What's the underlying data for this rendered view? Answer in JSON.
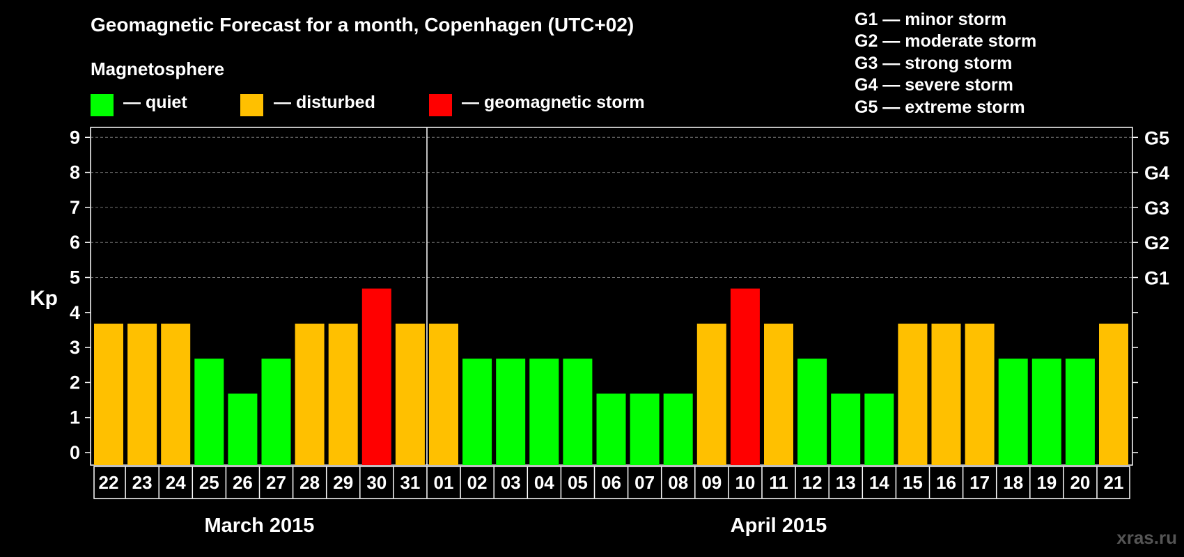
{
  "title": "Geomagnetic Forecast for a month, Copenhagen (UTC+02)",
  "subtitle": "Magnetosphere",
  "legend": [
    {
      "label": "— quiet",
      "color": "#00ff00"
    },
    {
      "label": "— disturbed",
      "color": "#ffc000"
    },
    {
      "label": "— geomagnetic storm",
      "color": "#ff0000"
    }
  ],
  "g_levels": [
    "G1 — minor storm",
    "G2 — moderate storm",
    "G3 — strong storm",
    "G4 — severe storm",
    "G5 — extreme storm"
  ],
  "watermark": "xras.ru",
  "colors": {
    "quiet": "#00ff00",
    "disturbed": "#ffc000",
    "storm": "#ff0000",
    "grid": "#777777"
  },
  "chart_data": {
    "type": "bar",
    "title": "Geomagnetic Forecast for a month, Copenhagen (UTC+02)",
    "ylabel": "Kp",
    "ylim": [
      0,
      9
    ],
    "yticks": [
      "0",
      "1",
      "2",
      "3",
      "4",
      "5",
      "6",
      "7",
      "8",
      "9"
    ],
    "right_axis_labels": [
      {
        "kp": 5,
        "label": "G1"
      },
      {
        "kp": 6,
        "label": "G2"
      },
      {
        "kp": 7,
        "label": "G3"
      },
      {
        "kp": 8,
        "label": "G4"
      },
      {
        "kp": 9,
        "label": "G5"
      }
    ],
    "categories": [
      "22",
      "23",
      "24",
      "25",
      "26",
      "27",
      "28",
      "29",
      "30",
      "31",
      "01",
      "02",
      "03",
      "04",
      "05",
      "06",
      "07",
      "08",
      "09",
      "10",
      "11",
      "12",
      "13",
      "14",
      "15",
      "16",
      "17",
      "18",
      "19",
      "20",
      "21"
    ],
    "values": [
      4,
      4,
      4,
      3,
      2,
      3,
      4,
      4,
      5,
      4,
      4,
      3,
      3,
      3,
      3,
      2,
      2,
      2,
      4,
      5,
      4,
      3,
      2,
      2,
      4,
      4,
      4,
      3,
      3,
      3,
      4
    ],
    "months": [
      {
        "label": "March 2015",
        "start": 0,
        "end": 9
      },
      {
        "label": "April 2015",
        "start": 10,
        "end": 30
      }
    ],
    "month_divider_after_index": 9
  }
}
